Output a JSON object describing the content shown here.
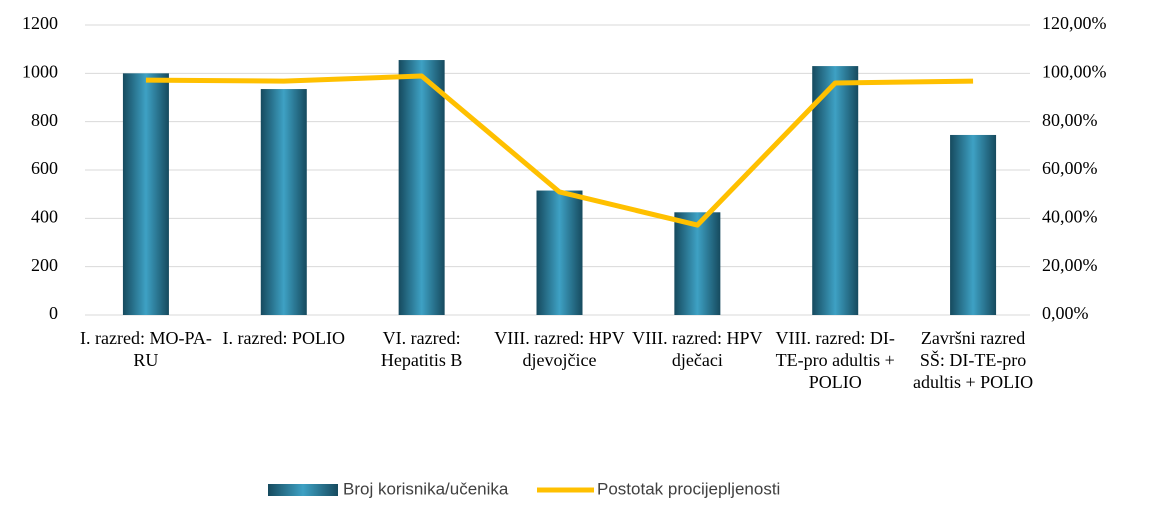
{
  "chart_data": {
    "type": "bar_line",
    "categories": [
      "I. razred: MO-PA-RU",
      "I. razred: POLIO",
      "VI. razred: Hepatitis B",
      "VIII. razred: HPV djevojčice",
      "VIII. razred: HPV dječaci",
      "VIII. razred: DI-TE-pro adultis + POLIO",
      "Završni razred SŠ: DI-TE-pro adultis + POLIO"
    ],
    "series": [
      {
        "name": "Broj korisnika/učenika",
        "color": "#2a7f9e",
        "type": "bar",
        "values": [
          1000,
          935,
          1055,
          515,
          425,
          1030,
          745
        ]
      },
      {
        "name": "Postotak procijepljenosti",
        "color": "#ffc000",
        "type": "line",
        "axis": "y2",
        "values": [
          97.2,
          96.8,
          98.9,
          50.9,
          37.2,
          96.0,
          96.8
        ]
      }
    ],
    "ylim": [
      0,
      1200
    ],
    "yticks": [
      0,
      200,
      400,
      600,
      800,
      1000,
      1200
    ],
    "y2lim": [
      0,
      120
    ],
    "y2ticks": [
      {
        "value": 0,
        "label": "0,00%"
      },
      {
        "value": 20,
        "label": "20,00%"
      },
      {
        "value": 40,
        "label": "40,00%"
      },
      {
        "value": 60,
        "label": "60,00%"
      },
      {
        "value": 80,
        "label": "80,00%"
      },
      {
        "value": 100,
        "label": "100,00%"
      },
      {
        "value": 120,
        "label": "120,00%"
      }
    ],
    "grid": true,
    "legend": "bottom"
  }
}
